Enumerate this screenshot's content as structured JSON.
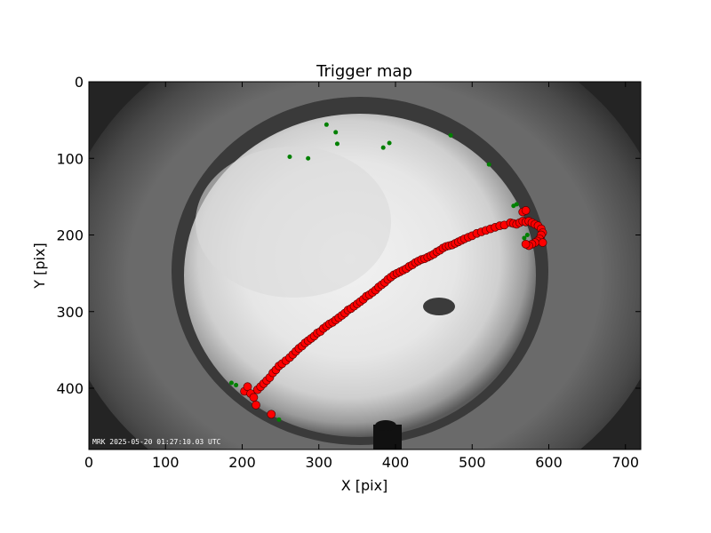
{
  "chart_data": {
    "type": "scatter",
    "title": "Trigger map",
    "xlabel": "X [pix]",
    "ylabel": "Y [pix]",
    "xlim": [
      0,
      720
    ],
    "ylim": [
      480,
      0
    ],
    "x_ticks": [
      0,
      100,
      200,
      300,
      400,
      500,
      600,
      700
    ],
    "y_ticks": [
      0,
      100,
      200,
      300,
      400
    ],
    "grid": false,
    "background": "all-sky fisheye camera image (grayscale)",
    "timestamp_overlay": "MRK 2025-05-20 01:27:10.03 UTC",
    "colors": {
      "red_points": "#ff0000",
      "green_points": "#008000"
    },
    "series": [
      {
        "color": "red",
        "marker": "circle-large",
        "points": [
          [
            203,
            404
          ],
          [
            207,
            398
          ],
          [
            211,
            407
          ],
          [
            215,
            412
          ],
          [
            218,
            422
          ],
          [
            220,
            402
          ],
          [
            224,
            398
          ],
          [
            228,
            394
          ],
          [
            232,
            390
          ],
          [
            236,
            386
          ],
          [
            240,
            380
          ],
          [
            244,
            376
          ],
          [
            248,
            371
          ],
          [
            252,
            368
          ],
          [
            257,
            364
          ],
          [
            262,
            360
          ],
          [
            266,
            356
          ],
          [
            270,
            352
          ],
          [
            274,
            348
          ],
          [
            278,
            345
          ],
          [
            282,
            341
          ],
          [
            286,
            338
          ],
          [
            290,
            335
          ],
          [
            294,
            332
          ],
          [
            298,
            328
          ],
          [
            302,
            326
          ],
          [
            306,
            322
          ],
          [
            310,
            319
          ],
          [
            314,
            316
          ],
          [
            318,
            314
          ],
          [
            322,
            311
          ],
          [
            326,
            308
          ],
          [
            330,
            305
          ],
          [
            334,
            302
          ],
          [
            338,
            298
          ],
          [
            342,
            296
          ],
          [
            346,
            293
          ],
          [
            350,
            290
          ],
          [
            354,
            287
          ],
          [
            358,
            284
          ],
          [
            362,
            280
          ],
          [
            366,
            278
          ],
          [
            370,
            275
          ],
          [
            374,
            272
          ],
          [
            378,
            268
          ],
          [
            382,
            265
          ],
          [
            386,
            262
          ],
          [
            390,
            258
          ],
          [
            394,
            255
          ],
          [
            398,
            252
          ],
          [
            402,
            250
          ],
          [
            406,
            248
          ],
          [
            410,
            246
          ],
          [
            414,
            244
          ],
          [
            418,
            241
          ],
          [
            422,
            239
          ],
          [
            426,
            236
          ],
          [
            430,
            234
          ],
          [
            434,
            232
          ],
          [
            438,
            231
          ],
          [
            442,
            229
          ],
          [
            446,
            227
          ],
          [
            450,
            225
          ],
          [
            454,
            222
          ],
          [
            458,
            220
          ],
          [
            462,
            217
          ],
          [
            466,
            215
          ],
          [
            470,
            214
          ],
          [
            474,
            213
          ],
          [
            478,
            211
          ],
          [
            482,
            209
          ],
          [
            486,
            207
          ],
          [
            490,
            205
          ],
          [
            495,
            203
          ],
          [
            500,
            201
          ],
          [
            506,
            198
          ],
          [
            512,
            196
          ],
          [
            518,
            194
          ],
          [
            524,
            192
          ],
          [
            530,
            190
          ],
          [
            536,
            188
          ],
          [
            542,
            187
          ],
          [
            550,
            184
          ],
          [
            554,
            185
          ],
          [
            558,
            186
          ],
          [
            562,
            184
          ],
          [
            566,
            182
          ],
          [
            570,
            183
          ],
          [
            574,
            182
          ],
          [
            578,
            184
          ],
          [
            582,
            186
          ],
          [
            586,
            188
          ],
          [
            590,
            192
          ],
          [
            592,
            197
          ],
          [
            590,
            200
          ],
          [
            588,
            205
          ],
          [
            585,
            208
          ],
          [
            582,
            210
          ],
          [
            578,
            212
          ],
          [
            574,
            214
          ],
          [
            570,
            212
          ],
          [
            592,
            210
          ],
          [
            566,
            170
          ],
          [
            570,
            168
          ],
          [
            238,
            434
          ]
        ]
      },
      {
        "color": "green",
        "marker": "circle-small",
        "points": [
          [
            310,
            56
          ],
          [
            322,
            66
          ],
          [
            324,
            81
          ],
          [
            392,
            80
          ],
          [
            384,
            86
          ],
          [
            262,
            98
          ],
          [
            286,
            100
          ],
          [
            472,
            70
          ],
          [
            522,
            108
          ],
          [
            554,
            162
          ],
          [
            558,
            160
          ],
          [
            568,
            204
          ],
          [
            572,
            200
          ],
          [
            186,
            393
          ],
          [
            192,
            396
          ],
          [
            248,
            441
          ]
        ]
      }
    ]
  }
}
